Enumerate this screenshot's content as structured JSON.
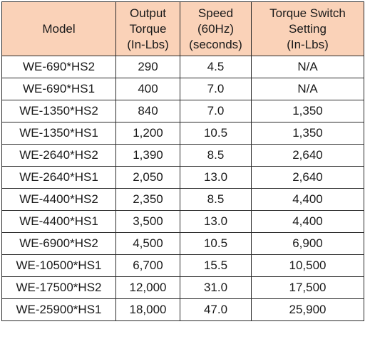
{
  "table": {
    "headers": {
      "model": [
        "Model"
      ],
      "output_torque": [
        "Output",
        "Torque",
        "(In-Lbs)"
      ],
      "speed": [
        "Speed",
        "(60Hz)",
        "(seconds)"
      ],
      "torque_switch": [
        "Torque Switch",
        "Setting",
        "(In-Lbs)"
      ]
    },
    "rows": [
      [
        "WE-690*HS2",
        "290",
        "4.5",
        "N/A"
      ],
      [
        "WE-690*HS1",
        "400",
        "7.0",
        "N/A"
      ],
      [
        "WE-1350*HS2",
        "840",
        "7.0",
        "1,350"
      ],
      [
        "WE-1350*HS1",
        "1,200",
        "10.5",
        "1,350"
      ],
      [
        "WE-2640*HS2",
        "1,390",
        "8.5",
        "2,640"
      ],
      [
        "WE-2640*HS1",
        "2,050",
        "13.0",
        "2,640"
      ],
      [
        "WE-4400*HS2",
        "2,350",
        "8.5",
        "4,400"
      ],
      [
        "WE-4400*HS1",
        "3,500",
        "13.0",
        "4,400"
      ],
      [
        "WE-6900*HS2",
        "4,500",
        "10.5",
        "6,900"
      ],
      [
        "WE-10500*HS1",
        "6,700",
        "15.5",
        "10,500"
      ],
      [
        "WE-17500*HS2",
        "12,000",
        "31.0",
        "17,500"
      ],
      [
        "WE-25900*HS1",
        "18,000",
        "47.0",
        "25,900"
      ]
    ]
  },
  "colors": {
    "header_background": "#fad2b8",
    "border": "#2a2a2a",
    "text": "#1a1a1a"
  }
}
